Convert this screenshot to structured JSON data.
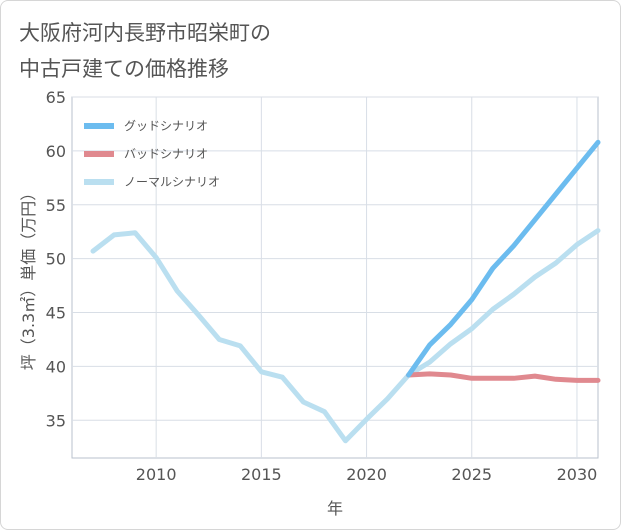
{
  "chart_data": {
    "type": "line",
    "title": "大阪府河内長野市昭栄町の\n中古戸建ての価格推移",
    "xlabel": "年",
    "ylabel": "坪（3.3㎡）単価（万円）",
    "xlim": [
      2006,
      2031
    ],
    "ylim": [
      31.5,
      65
    ],
    "x_ticks": [
      2010,
      2015,
      2020,
      2025,
      2030
    ],
    "y_ticks": [
      35,
      40,
      45,
      50,
      55,
      60,
      65
    ],
    "x_tick_labels": [
      "2010",
      "2015",
      "2020",
      "2025",
      "2030"
    ],
    "y_tick_labels": [
      "35",
      "40",
      "45",
      "50",
      "55",
      "60",
      "65"
    ],
    "legend_position": "top-left",
    "series": [
      {
        "name": "グッドシナリオ",
        "color": "#6cbcef",
        "x": [
          2022,
          2023,
          2024,
          2025,
          2026,
          2027,
          2028,
          2029,
          2030,
          2031
        ],
        "values": [
          39.2,
          42.0,
          43.9,
          46.2,
          49.1,
          51.2,
          53.6,
          56.0,
          58.4,
          60.8
        ]
      },
      {
        "name": "バッドシナリオ",
        "color": "#e0898f",
        "x": [
          2022,
          2023,
          2024,
          2025,
          2026,
          2027,
          2028,
          2029,
          2030,
          2031
        ],
        "values": [
          39.2,
          39.3,
          39.2,
          38.9,
          38.9,
          38.9,
          39.1,
          38.8,
          38.7,
          38.7
        ]
      },
      {
        "name": "ノーマルシナリオ",
        "color": "#badff0",
        "x": [
          2007,
          2008,
          2009,
          2010,
          2011,
          2012,
          2013,
          2014,
          2015,
          2016,
          2017,
          2018,
          2019,
          2020,
          2021,
          2022,
          2023,
          2024,
          2025,
          2026,
          2027,
          2028,
          2029,
          2030,
          2031
        ],
        "values": [
          50.7,
          52.2,
          52.4,
          50.1,
          47.0,
          44.8,
          42.5,
          41.9,
          39.5,
          39.0,
          36.7,
          35.8,
          33.1,
          35.1,
          37.0,
          39.2,
          40.4,
          42.1,
          43.5,
          45.3,
          46.7,
          48.3,
          49.6,
          51.3,
          52.6
        ]
      }
    ]
  }
}
